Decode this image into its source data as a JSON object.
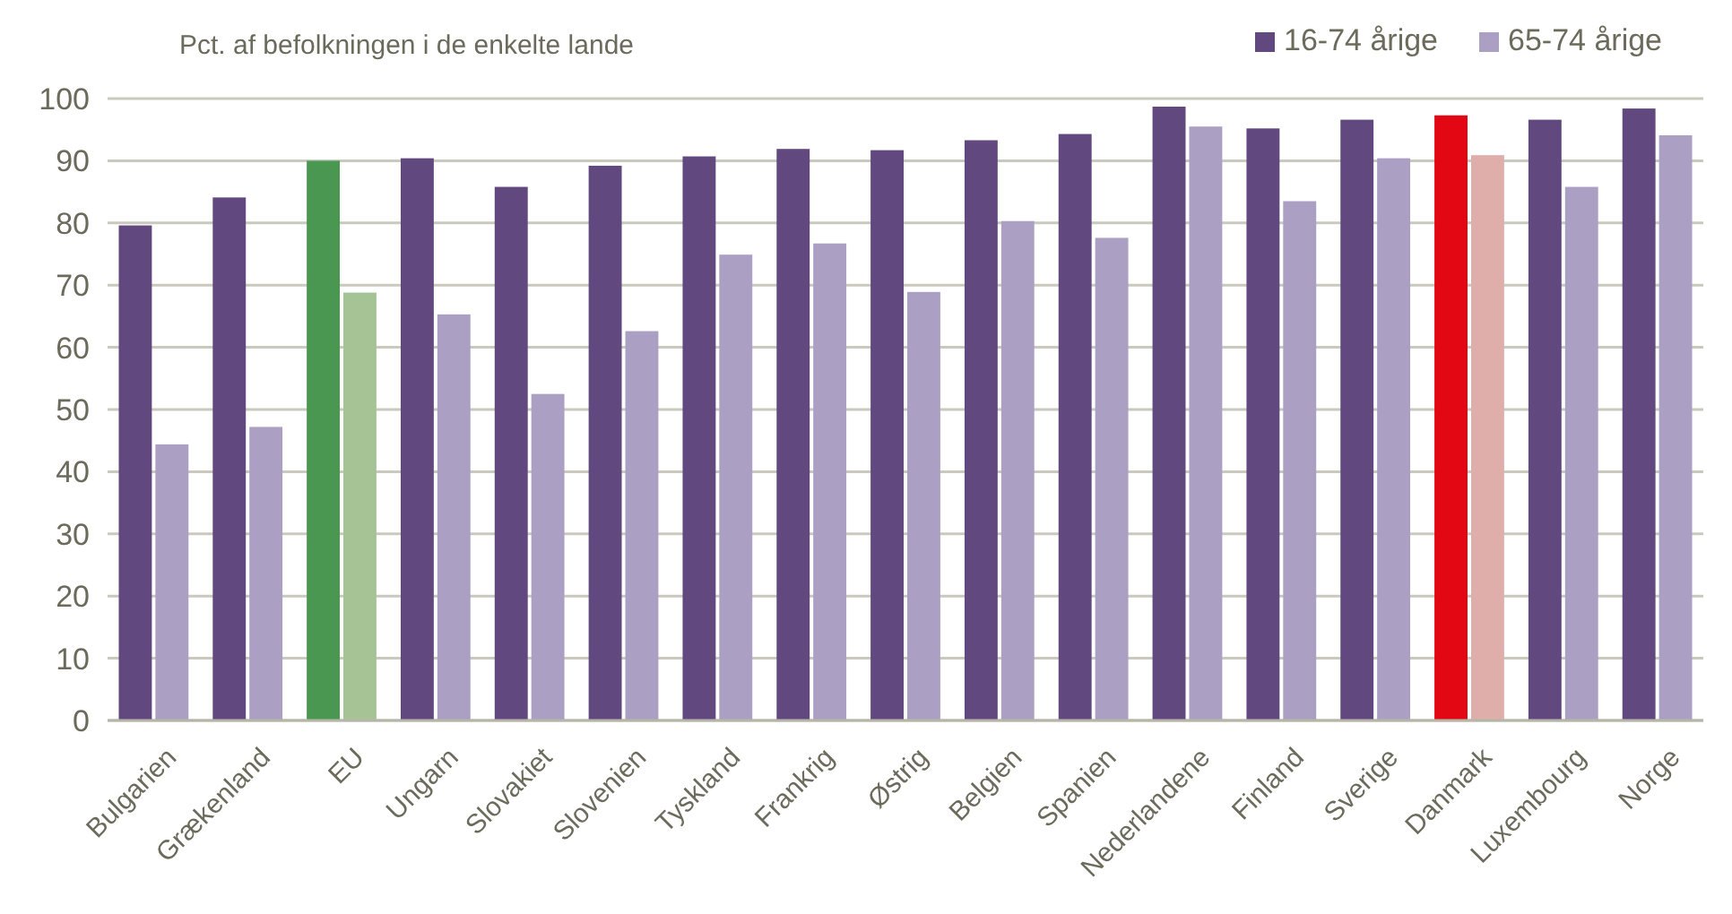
{
  "chart_data": {
    "type": "bar",
    "ylabel": "Pct. af befolkningen i de enkelte lande",
    "categories": [
      "Bulgarien",
      "Grækenland",
      "EU",
      "Ungarn",
      "Slovakiet",
      "Slovenien",
      "Tyskland",
      "Frankrig",
      "Østrig",
      "Belgien",
      "Spanien",
      "Nederlandene",
      "Finland",
      "Sverige",
      "Danmark",
      "Luxembourg",
      "Norge"
    ],
    "series": [
      {
        "name": "16-74 årige",
        "color": "#61487f",
        "colors": [
          "#61487f",
          "#61487f",
          "#4a9751",
          "#61487f",
          "#61487f",
          "#61487f",
          "#61487f",
          "#61487f",
          "#61487f",
          "#61487f",
          "#61487f",
          "#61487f",
          "#61487f",
          "#61487f",
          "#e30613",
          "#61487f",
          "#61487f"
        ],
        "values": [
          79.6,
          84.1,
          90.0,
          90.4,
          85.8,
          89.2,
          90.7,
          91.9,
          91.7,
          93.3,
          94.3,
          98.7,
          95.2,
          96.6,
          97.3,
          96.6,
          98.4
        ]
      },
      {
        "name": "65-74 årige",
        "color": "#ab9fc3",
        "colors": [
          "#ab9fc3",
          "#ab9fc3",
          "#a6c396",
          "#ab9fc3",
          "#ab9fc3",
          "#ab9fc3",
          "#ab9fc3",
          "#ab9fc3",
          "#ab9fc3",
          "#ab9fc3",
          "#ab9fc3",
          "#ab9fc3",
          "#ab9fc3",
          "#ab9fc3",
          "#dfaeaa",
          "#ab9fc3",
          "#ab9fc3"
        ],
        "values": [
          44.4,
          47.2,
          68.8,
          65.3,
          52.5,
          62.6,
          74.9,
          76.7,
          68.9,
          80.3,
          77.6,
          95.5,
          83.5,
          90.4,
          90.9,
          85.8,
          94.1
        ]
      }
    ],
    "ylim": [
      0,
      100
    ],
    "yticks": [
      0,
      10,
      20,
      30,
      40,
      50,
      60,
      70,
      80,
      90,
      100
    ],
    "grid": "y",
    "legend": "top right"
  }
}
